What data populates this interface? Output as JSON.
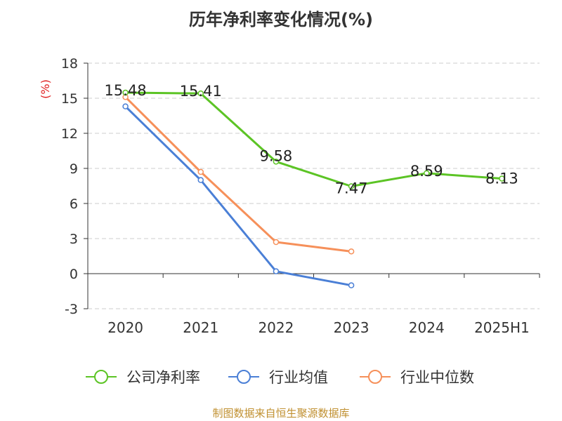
{
  "title": "历年净利率变化情况(%)",
  "source": "制图数据来自恒生聚源数据库",
  "chart_data": {
    "type": "line",
    "title": "历年净利率变化情况(%)",
    "ylabel": "(%)",
    "categories": [
      "2020",
      "2021",
      "2022",
      "2023",
      "2024",
      "2025H1"
    ],
    "y_ticks": [
      "18",
      "15",
      "12",
      "9",
      "6",
      "3",
      "0",
      "-3"
    ],
    "ylim": [
      -3,
      18
    ],
    "grid": "horizontal dashed",
    "legend_position": "bottom",
    "series": [
      {
        "name": "公司净利率",
        "color": "#5cc425",
        "values": [
          15.48,
          15.41,
          9.58,
          7.47,
          8.59,
          8.13
        ],
        "show_labels": true
      },
      {
        "name": "行业均值",
        "color": "#4a7fd6",
        "values": [
          14.3,
          8.0,
          0.2,
          -1.0,
          null,
          null
        ],
        "show_labels": false
      },
      {
        "name": "行业中位数",
        "color": "#f6905a",
        "values": [
          15.1,
          8.7,
          2.7,
          1.9,
          null,
          null
        ],
        "show_labels": false
      }
    ]
  }
}
